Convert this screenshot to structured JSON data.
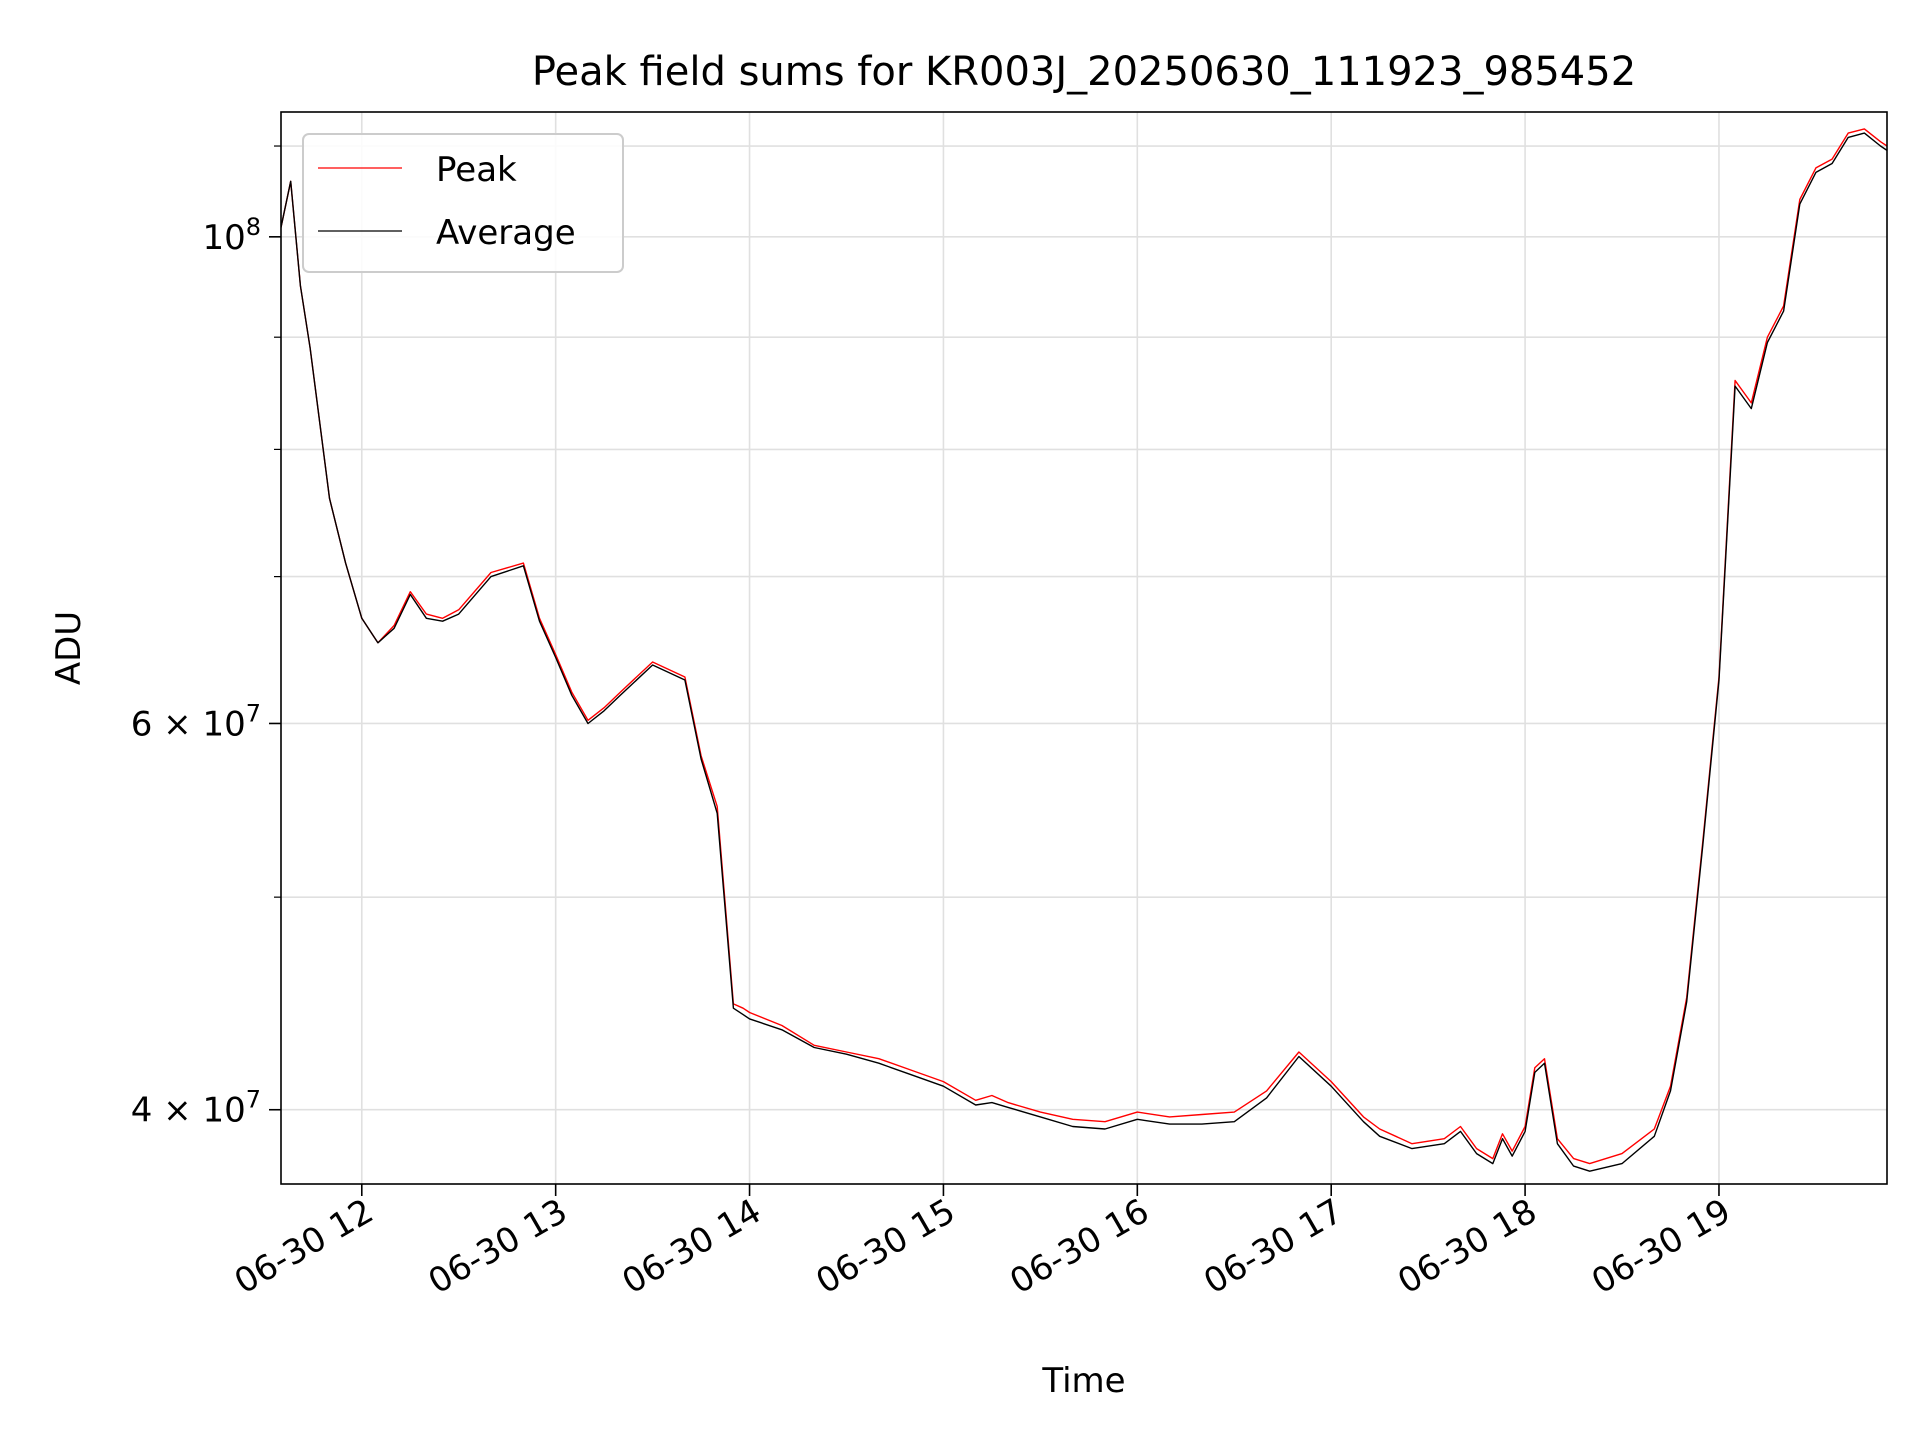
{
  "chart_data": {
    "type": "line",
    "title": "Peak field sums for KR003J_20250630_111923_985452",
    "xlabel": "Time",
    "ylabel": "ADU",
    "yscale": "log",
    "xlim": [
      "2025-06-30 11:35",
      "2025-06-30 19:52"
    ],
    "ylim": [
      37000000,
      114000000
    ],
    "grid": true,
    "legend_position": "upper-left",
    "x_tick_labels": [
      "06-30 12",
      "06-30 13",
      "06-30 14",
      "06-30 15",
      "06-30 16",
      "06-30 17",
      "06-30 18",
      "06-30 19"
    ],
    "y_tick_labels": [
      {
        "value": 100000000,
        "base": "10",
        "exp": "8",
        "mult": ""
      },
      {
        "value": 60000000,
        "base": "10",
        "exp": "7",
        "mult": "6 × "
      },
      {
        "value": 40000000,
        "base": "10",
        "exp": "7",
        "mult": "4 × "
      }
    ],
    "x": [
      "2025-06-30 11:35",
      "2025-06-30 11:38",
      "2025-06-30 11:41",
      "2025-06-30 11:44",
      "2025-06-30 11:50",
      "2025-06-30 11:55",
      "2025-06-30 12:00",
      "2025-06-30 12:05",
      "2025-06-30 12:10",
      "2025-06-30 12:15",
      "2025-06-30 12:20",
      "2025-06-30 12:25",
      "2025-06-30 12:30",
      "2025-06-30 12:40",
      "2025-06-30 12:50",
      "2025-06-30 12:55",
      "2025-06-30 13:00",
      "2025-06-30 13:05",
      "2025-06-30 13:10",
      "2025-06-30 13:15",
      "2025-06-30 13:20",
      "2025-06-30 13:30",
      "2025-06-30 13:40",
      "2025-06-30 13:45",
      "2025-06-30 13:50",
      "2025-06-30 13:55",
      "2025-06-30 13:58",
      "2025-06-30 14:00",
      "2025-06-30 14:10",
      "2025-06-30 14:20",
      "2025-06-30 14:30",
      "2025-06-30 14:40",
      "2025-06-30 14:50",
      "2025-06-30 15:00",
      "2025-06-30 15:10",
      "2025-06-30 15:15",
      "2025-06-30 15:20",
      "2025-06-30 15:30",
      "2025-06-30 15:40",
      "2025-06-30 15:50",
      "2025-06-30 16:00",
      "2025-06-30 16:10",
      "2025-06-30 16:20",
      "2025-06-30 16:30",
      "2025-06-30 16:40",
      "2025-06-30 16:50",
      "2025-06-30 17:00",
      "2025-06-30 17:10",
      "2025-06-30 17:15",
      "2025-06-30 17:25",
      "2025-06-30 17:35",
      "2025-06-30 17:40",
      "2025-06-30 17:45",
      "2025-06-30 17:50",
      "2025-06-30 17:53",
      "2025-06-30 17:56",
      "2025-06-30 18:00",
      "2025-06-30 18:03",
      "2025-06-30 18:06",
      "2025-06-30 18:10",
      "2025-06-30 18:15",
      "2025-06-30 18:20",
      "2025-06-30 18:30",
      "2025-06-30 18:40",
      "2025-06-30 18:45",
      "2025-06-30 18:50",
      "2025-06-30 18:55",
      "2025-06-30 19:00",
      "2025-06-30 19:05",
      "2025-06-30 19:10",
      "2025-06-30 19:15",
      "2025-06-30 19:20",
      "2025-06-30 19:25",
      "2025-06-30 19:30",
      "2025-06-30 19:35",
      "2025-06-30 19:40",
      "2025-06-30 19:45",
      "2025-06-30 19:50",
      "2025-06-30 19:52"
    ],
    "series": [
      {
        "name": "Peak",
        "color": "#ff0000",
        "values": [
          101000000,
          106000000,
          95000000,
          89000000,
          76000000,
          71000000,
          67000000,
          65300000,
          66500000,
          68900000,
          67300000,
          67000000,
          67600000,
          70300000,
          71000000,
          67000000,
          64500000,
          62000000,
          60200000,
          61000000,
          62000000,
          64000000,
          63000000,
          58000000,
          55000000,
          44700000,
          44500000,
          44300000,
          43700000,
          42800000,
          42500000,
          42200000,
          41700000,
          41200000,
          40400000,
          40600000,
          40300000,
          39900000,
          39600000,
          39500000,
          39900000,
          39700000,
          39800000,
          39900000,
          40800000,
          42500000,
          41200000,
          39700000,
          39200000,
          38600000,
          38800000,
          39300000,
          38400000,
          38000000,
          39000000,
          38300000,
          39300000,
          41800000,
          42200000,
          38800000,
          38000000,
          37800000,
          38200000,
          39200000,
          41000000,
          45000000,
          53000000,
          63000000,
          86000000,
          84000000,
          90000000,
          93000000,
          104000000,
          107500000,
          108500000,
          111500000,
          112000000,
          110500000,
          110000000
        ]
      },
      {
        "name": "Average",
        "color": "#000000",
        "values": [
          101000000,
          106000000,
          95000000,
          89000000,
          76000000,
          71000000,
          67000000,
          65300000,
          66300000,
          68700000,
          67000000,
          66800000,
          67300000,
          70000000,
          70800000,
          66800000,
          64300000,
          61800000,
          60000000,
          60800000,
          61800000,
          63800000,
          62800000,
          57800000,
          54600000,
          44500000,
          44200000,
          44000000,
          43500000,
          42700000,
          42400000,
          42000000,
          41500000,
          41000000,
          40200000,
          40300000,
          40100000,
          39700000,
          39300000,
          39200000,
          39600000,
          39400000,
          39400000,
          39500000,
          40500000,
          42300000,
          41000000,
          39500000,
          38900000,
          38400000,
          38600000,
          39100000,
          38200000,
          37800000,
          38800000,
          38100000,
          39100000,
          41600000,
          42000000,
          38600000,
          37700000,
          37500000,
          37800000,
          38900000,
          40800000,
          44800000,
          52800000,
          62800000,
          85500000,
          83500000,
          89500000,
          92500000,
          103500000,
          107000000,
          108000000,
          111000000,
          111500000,
          110000000,
          109500000
        ]
      }
    ]
  }
}
